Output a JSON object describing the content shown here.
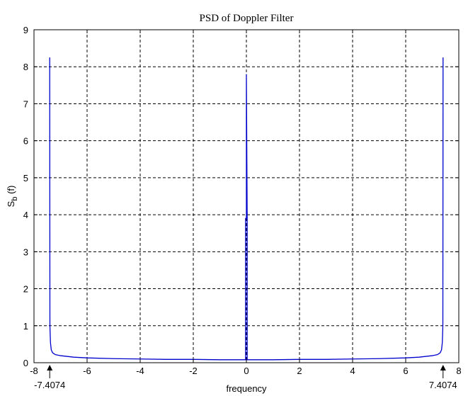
{
  "chart_data": {
    "type": "line",
    "title": "PSD of Doppler Filter",
    "xlabel": "frequency",
    "ylabel_main": "S",
    "ylabel_sub": "b",
    "ylabel_suffix": " (f)",
    "xlim": [
      -8,
      8
    ],
    "ylim": [
      0,
      9
    ],
    "xticks": [
      "-8",
      "-6",
      "-4",
      "-2",
      "0",
      "2",
      "4",
      "6",
      "8"
    ],
    "yticks": [
      "0",
      "1",
      "2",
      "3",
      "4",
      "5",
      "6",
      "7",
      "8",
      "9"
    ],
    "grid": true,
    "annotations": [
      {
        "text": "-7.4074",
        "x": -7.4074
      },
      {
        "text": "7.4074",
        "x": 7.4074
      }
    ],
    "series": [
      {
        "color": "#0000cc",
        "x": [
          -7.4074,
          -7.4,
          -7.38,
          -7.35,
          -7.3,
          -7.2,
          -7.0,
          -6.5,
          -6.0,
          -5.0,
          -4.0,
          -3.0,
          -2.0,
          -1.0,
          -0.5,
          -0.05,
          -0.03,
          -0.03,
          0,
          0,
          0.03,
          0.03,
          0.05,
          0.5,
          1.0,
          2.0,
          3.0,
          4.0,
          5.0,
          6.0,
          6.5,
          7.0,
          7.2,
          7.3,
          7.35,
          7.38,
          7.4,
          7.4074
        ],
        "y": [
          8.25,
          1.0,
          0.55,
          0.35,
          0.27,
          0.22,
          0.19,
          0.15,
          0.13,
          0.11,
          0.1,
          0.09,
          0.09,
          0.08,
          0.08,
          0.08,
          0.08,
          3.9,
          3.9,
          7.8,
          3.9,
          0.08,
          0.08,
          0.08,
          0.08,
          0.09,
          0.09,
          0.1,
          0.11,
          0.13,
          0.15,
          0.19,
          0.22,
          0.27,
          0.35,
          0.55,
          1.0,
          8.25
        ]
      }
    ]
  }
}
